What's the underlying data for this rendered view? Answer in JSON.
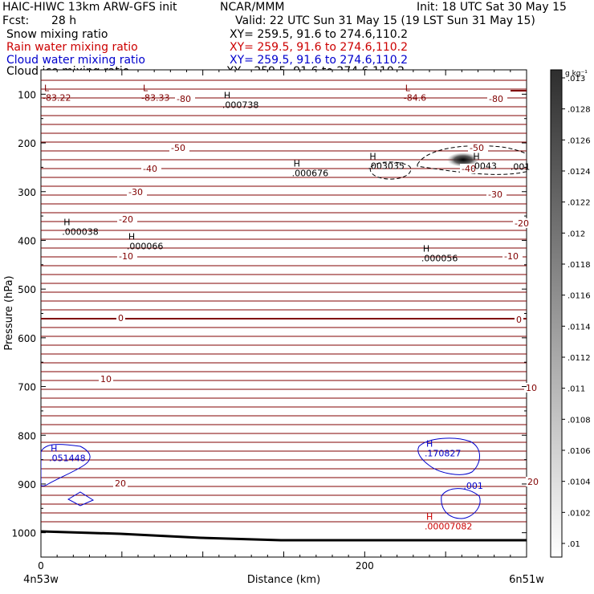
{
  "header": {
    "title_left": "HAIC-HIWC 13km ARW-GFS init",
    "org": "NCAR/MMM",
    "init": "Init: 18 UTC Sat 30 May 15",
    "fcst_label": "Fcst:",
    "fcst_value": "28 h",
    "valid": "Valid: 22 UTC Sun 31 May 15 (19 LST Sun 31 May 15)",
    "fields": [
      {
        "name": "Snow mixing ratio",
        "xy": "XY= 259.5, 91.6 to 274.6,110.2",
        "color": "#000000"
      },
      {
        "name": "Rain water mixing ratio",
        "xy": "XY= 259.5, 91.6 to 274.6,110.2",
        "color": "#cc0000"
      },
      {
        "name": "Cloud water mixing ratio",
        "xy": "XY= 259.5, 91.6 to 274.6,110.2",
        "color": "#0000cc"
      },
      {
        "name": "Cloud ice mixing ratio",
        "xy": "XY= 259.5, 91.6 to 274.6,110.2",
        "color": "#000000"
      }
    ]
  },
  "chart_data": {
    "type": "contour cross-section",
    "xlabel": "Distance (km)",
    "ylabel": "Pressure (hPa)",
    "x_range": [
      0,
      300
    ],
    "x_ticks": [
      0,
      200
    ],
    "x_end_labels": {
      "left": "4n53w",
      "right": "6n51w"
    },
    "y_range": [
      1050,
      50
    ],
    "y_scale": "linear, inverted",
    "y_ticks": [
      100,
      200,
      300,
      400,
      500,
      600,
      700,
      800,
      900,
      1000
    ],
    "temperature_contours": {
      "color": "#800000",
      "label_values": [
        -80,
        -50,
        -40,
        -30,
        -20,
        -10,
        0,
        10,
        20
      ]
    },
    "extrema_labels": [
      {
        "type": "L",
        "value": "-83.22",
        "x_km": 1,
        "p": 110,
        "color": "#800000"
      },
      {
        "type": "L",
        "value": "-83.33",
        "x_km": 62,
        "p": 110,
        "color": "#800000"
      },
      {
        "type": "L",
        "value": "-84.6",
        "x_km": 224,
        "p": 110,
        "color": "#800000"
      },
      {
        "type": "H",
        "value": ".000738",
        "x_km": 112,
        "p": 125,
        "color": "#000000"
      },
      {
        "type": "H",
        "value": ".003035",
        "x_km": 202,
        "p": 250,
        "color": "#000000"
      },
      {
        "type": "H",
        "value": ".000676",
        "x_km": 155,
        "p": 265,
        "color": "#000000"
      },
      {
        "type": "H",
        "value": ".0043",
        "x_km": 266,
        "p": 250,
        "color": "#000000"
      },
      {
        "type": "H",
        "value": ".000038",
        "x_km": 13,
        "p": 385,
        "color": "#000000"
      },
      {
        "type": "H",
        "value": ".000066",
        "x_km": 53,
        "p": 415,
        "color": "#000000"
      },
      {
        "type": "H",
        "value": ".000056",
        "x_km": 235,
        "p": 440,
        "color": "#000000"
      },
      {
        "type": "H",
        "value": ".051448",
        "x_km": 5,
        "p": 850,
        "color": "#0000cc"
      },
      {
        "type": "H",
        "value": ".170827",
        "x_km": 237,
        "p": 840,
        "color": "#0000cc"
      },
      {
        "type": "H",
        "value": ".00007082",
        "x_km": 237,
        "p": 990,
        "color": "#cc0000"
      }
    ],
    "contour_value_labels": [
      {
        "value": ".001",
        "x_km": 290,
        "p": 255,
        "color": "#000000"
      },
      {
        "value": ".001",
        "x_km": 261,
        "p": 910,
        "color": "#0000cc"
      }
    ],
    "colorbar": {
      "unit": "g kg⁻¹",
      "ticks": [
        ".013",
        ".0128",
        ".0126",
        ".0124",
        ".0122",
        ".012",
        ".0118",
        ".0116",
        ".0114",
        ".0112",
        ".011",
        ".0108",
        ".0106",
        ".0104",
        ".0102",
        ".01"
      ]
    }
  }
}
